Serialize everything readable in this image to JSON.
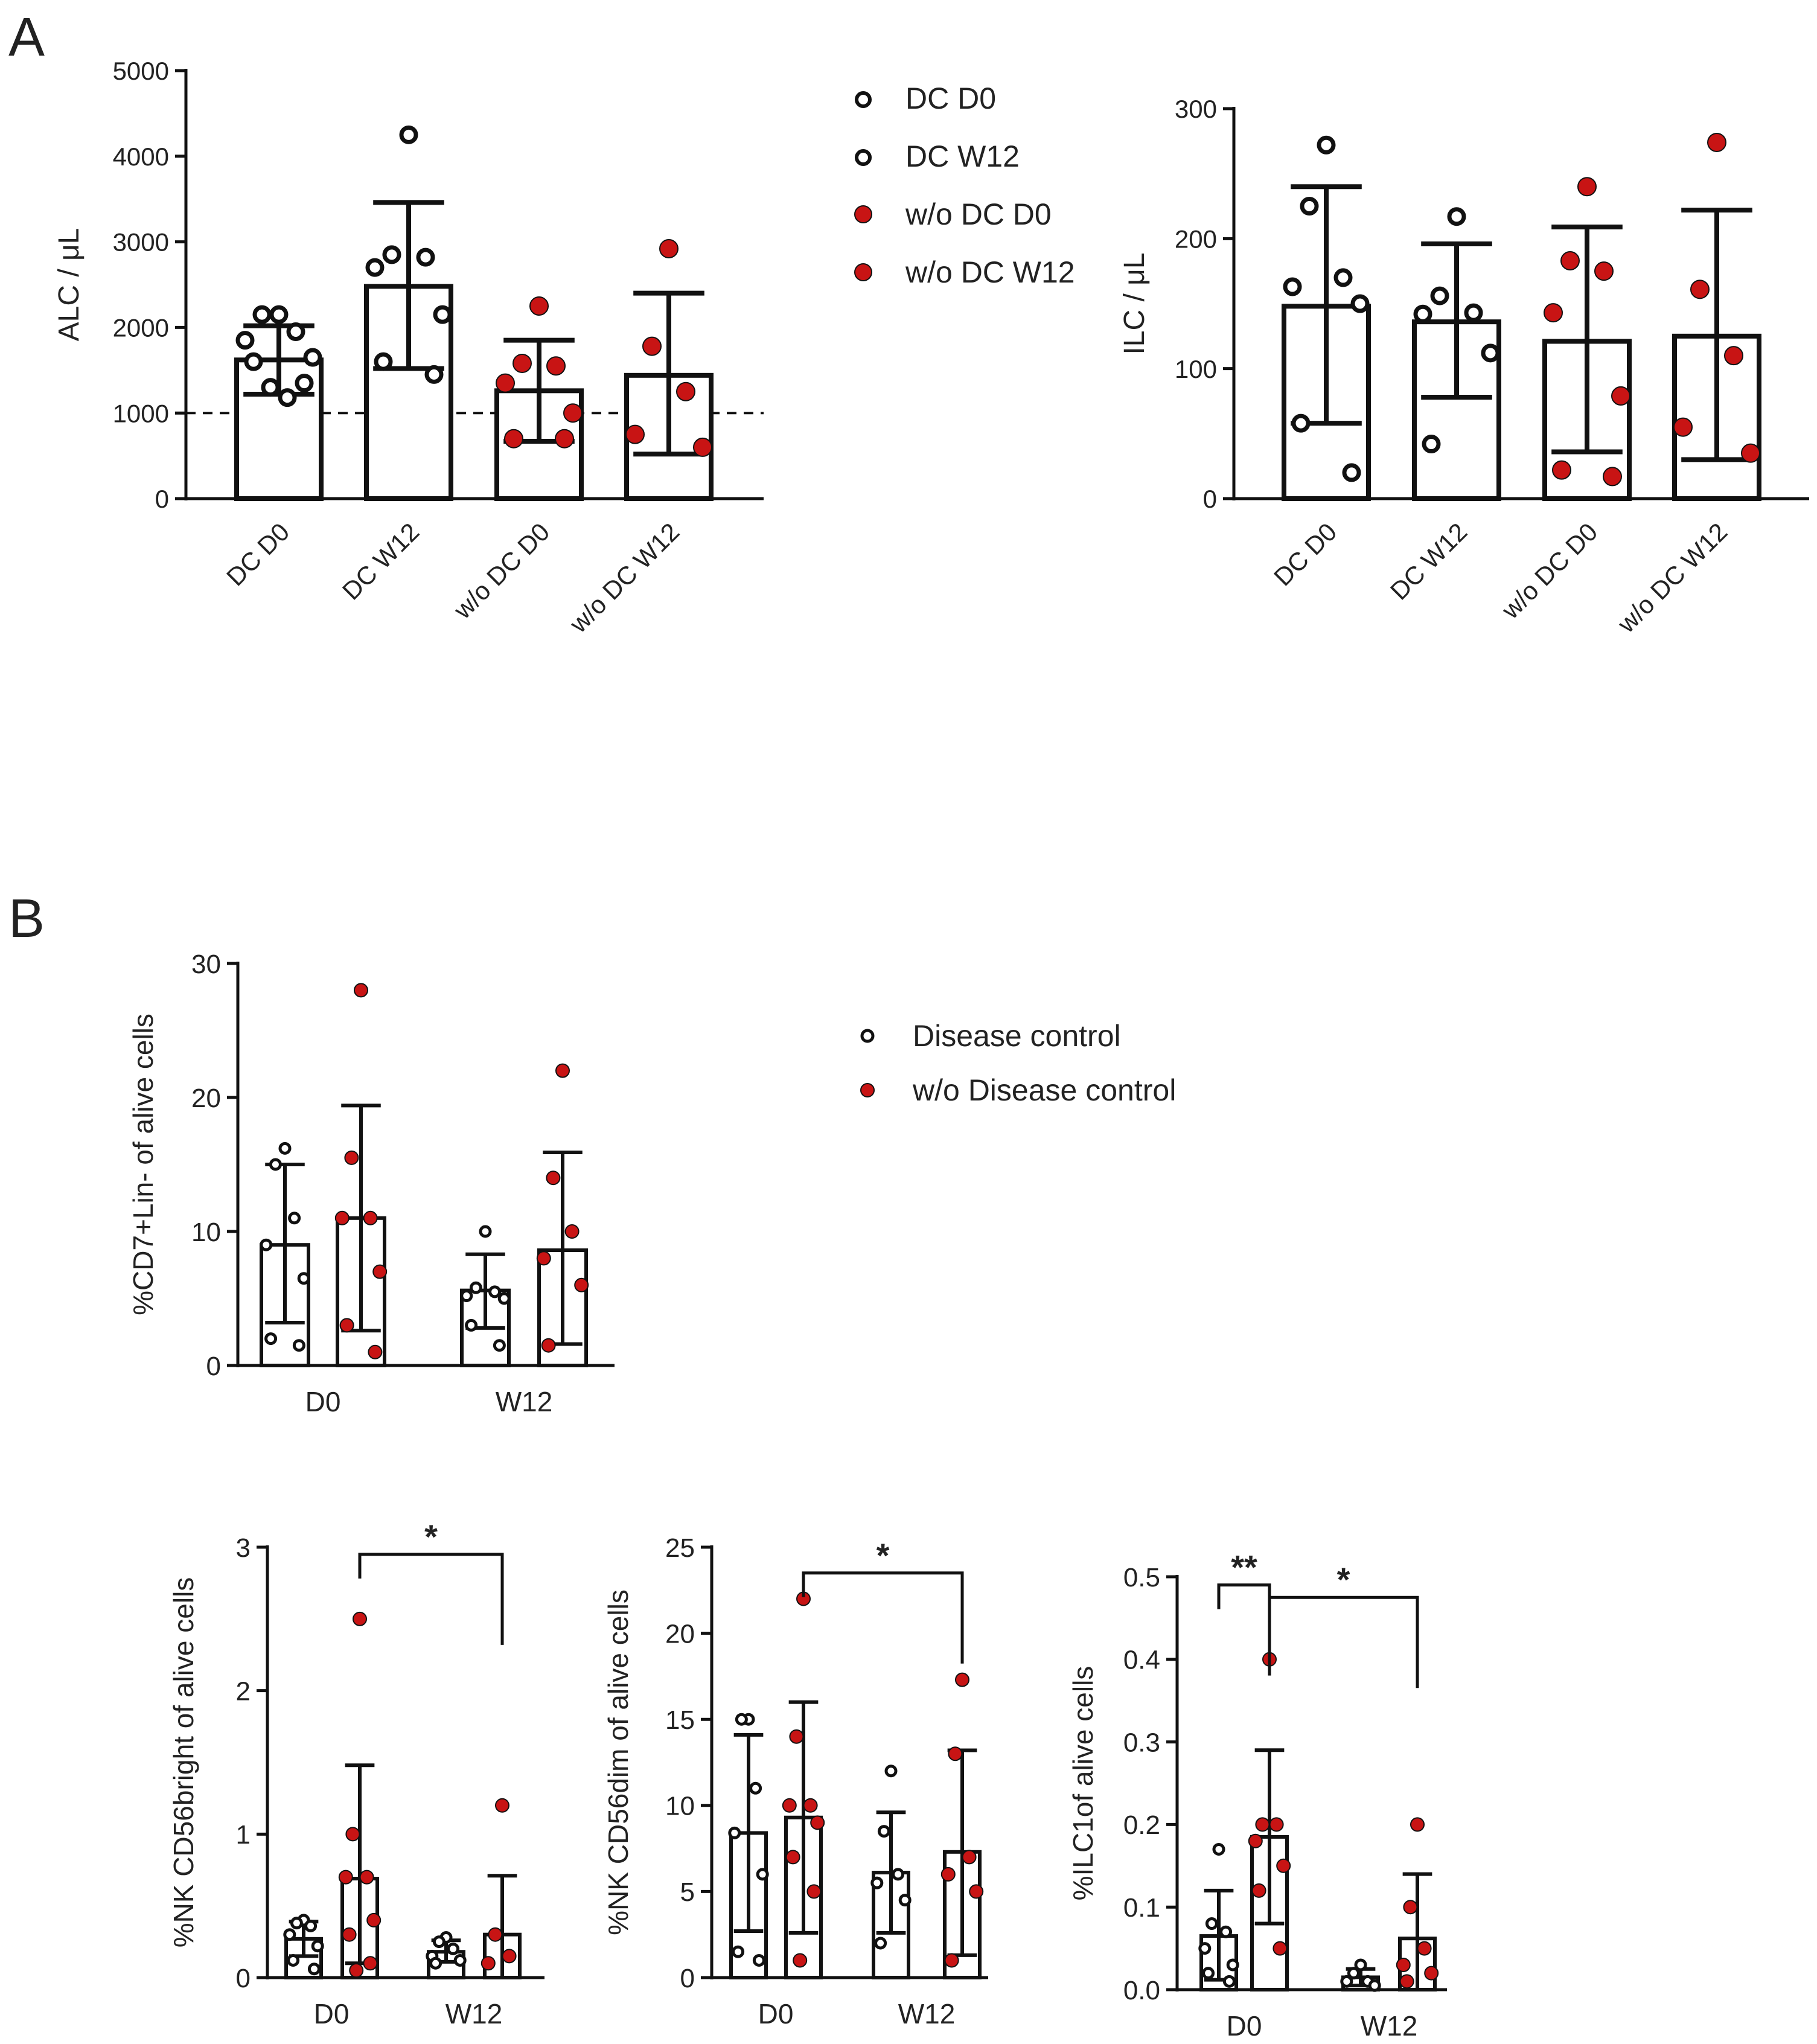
{
  "panel_labels": [
    "A",
    "B"
  ],
  "colors": {
    "open": "#ffffff",
    "filled": "#c81414",
    "ink": "#111111"
  },
  "legend_A": [
    {
      "label": "DC D0",
      "marker": "open"
    },
    {
      "label": "DC W12",
      "marker": "open"
    },
    {
      "label": "w/o DC D0",
      "marker": "filled"
    },
    {
      "label": "w/o DC W12",
      "marker": "filled"
    }
  ],
  "legend_B": [
    {
      "label": "Disease control",
      "marker": "open"
    },
    {
      "label": "w/o Disease control",
      "marker": "filled"
    }
  ],
  "chart_data": [
    {
      "id": "alc",
      "type": "bar",
      "ylabel": "ALC / μL",
      "ylim": [
        0,
        5000
      ],
      "yticks": [
        0,
        1000,
        2000,
        3000,
        4000,
        5000
      ],
      "reference_line": 1000,
      "categories": [
        "DC D0",
        "DC W12",
        "w/o DC D0",
        "w/o DC W12"
      ],
      "bars": [
        {
          "category": "DC D0",
          "marker": "open",
          "mean": 1620,
          "err_low": 1220,
          "err_high": 2020,
          "points": [
            2150,
            2150,
            1950,
            1850,
            1650,
            1600,
            1350,
            1300,
            1180
          ]
        },
        {
          "category": "DC W12",
          "marker": "open",
          "mean": 2480,
          "err_low": 1520,
          "err_high": 3460,
          "points": [
            4250,
            2850,
            2820,
            2700,
            2150,
            1600,
            1450
          ]
        },
        {
          "category": "w/o DC D0",
          "marker": "filled",
          "mean": 1260,
          "err_low": 670,
          "err_high": 1850,
          "points": [
            2250,
            1580,
            1550,
            1350,
            1000,
            700,
            700
          ]
        },
        {
          "category": "w/o DC W12",
          "marker": "filled",
          "mean": 1440,
          "err_low": 520,
          "err_high": 2400,
          "points": [
            2920,
            1780,
            1250,
            750,
            600
          ]
        }
      ]
    },
    {
      "id": "ilc",
      "type": "bar",
      "ylabel": "ILC / μL",
      "ylim": [
        0,
        300
      ],
      "yticks": [
        0,
        100,
        200,
        300
      ],
      "categories": [
        "DC D0",
        "DC W12",
        "w/o DC D0",
        "w/o DC W12"
      ],
      "bars": [
        {
          "category": "DC D0",
          "marker": "open",
          "mean": 148,
          "err_low": 58,
          "err_high": 240,
          "points": [
            272,
            225,
            170,
            163,
            150,
            58,
            20
          ]
        },
        {
          "category": "DC W12",
          "marker": "open",
          "mean": 136,
          "err_low": 78,
          "err_high": 196,
          "points": [
            217,
            156,
            143,
            142,
            112,
            42
          ]
        },
        {
          "category": "w/o DC D0",
          "marker": "filled",
          "mean": 121,
          "err_low": 36,
          "err_high": 209,
          "points": [
            240,
            183,
            175,
            143,
            79,
            22,
            17
          ]
        },
        {
          "category": "w/o DC W12",
          "marker": "filled",
          "mean": 125,
          "err_low": 30,
          "err_high": 222,
          "points": [
            274,
            161,
            110,
            55,
            35
          ]
        }
      ]
    },
    {
      "id": "cd7",
      "type": "bar",
      "ylabel": "%CD7+Lin- of alive cells",
      "ylim": [
        0,
        30
      ],
      "yticks": [
        0,
        10,
        20,
        30
      ],
      "groups": [
        "D0",
        "W12"
      ],
      "bars": [
        {
          "group": "D0",
          "marker": "open",
          "mean": 9.0,
          "err_low": 3.2,
          "err_high": 15.0,
          "points": [
            16.2,
            15.0,
            11.0,
            9.0,
            6.5,
            2.0,
            1.5
          ]
        },
        {
          "group": "D0",
          "marker": "filled",
          "mean": 11.0,
          "err_low": 2.6,
          "err_high": 19.4,
          "points": [
            28.0,
            15.5,
            11.0,
            11.0,
            7.0,
            3.0,
            1.0
          ]
        },
        {
          "group": "W12",
          "marker": "open",
          "mean": 5.6,
          "err_low": 2.8,
          "err_high": 8.3,
          "points": [
            10.0,
            5.8,
            5.5,
            5.2,
            5.0,
            3.0,
            1.5
          ]
        },
        {
          "group": "W12",
          "marker": "filled",
          "mean": 8.6,
          "err_low": 1.6,
          "err_high": 15.9,
          "points": [
            22.0,
            14.0,
            10.0,
            8.0,
            6.0,
            1.5
          ]
        }
      ]
    },
    {
      "id": "bright",
      "type": "bar",
      "ylabel": "%NK CD56bright of alive cells",
      "ylim": [
        0,
        3
      ],
      "yticks": [
        0,
        1,
        2,
        3
      ],
      "groups": [
        "D0",
        "W12"
      ],
      "significance": [
        {
          "from_bar": 1,
          "to_bar": 3,
          "level_value": 2.95,
          "label": "*"
        }
      ],
      "bars": [
        {
          "group": "D0",
          "marker": "open",
          "mean": 0.27,
          "err_low": 0.15,
          "err_high": 0.39,
          "points": [
            0.4,
            0.38,
            0.36,
            0.3,
            0.22,
            0.12,
            0.06
          ]
        },
        {
          "group": "D0",
          "marker": "filled",
          "mean": 0.69,
          "err_low": 0.1,
          "err_high": 1.48,
          "points": [
            2.5,
            1.0,
            0.7,
            0.7,
            0.4,
            0.3,
            0.1,
            0.05
          ]
        },
        {
          "group": "W12",
          "marker": "open",
          "mean": 0.18,
          "err_low": 0.11,
          "err_high": 0.26,
          "points": [
            0.28,
            0.25,
            0.2,
            0.15,
            0.12,
            0.1
          ]
        },
        {
          "group": "W12",
          "marker": "filled",
          "mean": 0.3,
          "err_low": 0.0,
          "err_high": 0.71,
          "points": [
            1.2,
            0.3,
            0.15,
            0.1
          ]
        }
      ]
    },
    {
      "id": "dim",
      "type": "bar",
      "ylabel": "%NK CD56dim of alive cells",
      "ylim": [
        0,
        25
      ],
      "yticks": [
        0,
        5,
        10,
        15,
        20,
        25
      ],
      "groups": [
        "D0",
        "W12"
      ],
      "significance": [
        {
          "from_bar": 1,
          "to_bar": 3,
          "level_value": 23.5,
          "label": "*"
        }
      ],
      "bars": [
        {
          "group": "D0",
          "marker": "open",
          "mean": 8.4,
          "err_low": 2.7,
          "err_high": 14.1,
          "points": [
            15.0,
            15.0,
            11.0,
            8.4,
            6.0,
            1.5,
            1.0
          ]
        },
        {
          "group": "D0",
          "marker": "filled",
          "mean": 9.3,
          "err_low": 2.6,
          "err_high": 16.0,
          "points": [
            22.0,
            14.0,
            10.0,
            10.0,
            9.0,
            7.0,
            5.0,
            1.0
          ]
        },
        {
          "group": "W12",
          "marker": "open",
          "mean": 6.1,
          "err_low": 2.6,
          "err_high": 9.6,
          "points": [
            12.0,
            8.5,
            6.0,
            5.5,
            4.5,
            2.0
          ]
        },
        {
          "group": "W12",
          "marker": "filled",
          "mean": 7.3,
          "err_low": 1.3,
          "err_high": 13.2,
          "points": [
            17.3,
            13.0,
            7.0,
            6.0,
            5.0,
            1.0
          ]
        }
      ]
    },
    {
      "id": "ilc1",
      "type": "bar",
      "ylabel": "%ILC1of alive cells",
      "ylim": [
        0,
        0.5
      ],
      "yticks": [
        0.0,
        0.1,
        0.2,
        0.3,
        0.4,
        0.5
      ],
      "tick_decimals": 1,
      "groups": [
        "D0",
        "W12"
      ],
      "significance": [
        {
          "from_bar": 0,
          "to_bar": 1,
          "level_value": 0.49,
          "label": "**"
        },
        {
          "from_bar": 1,
          "to_bar": 3,
          "level_value": 0.475,
          "label": "*"
        }
      ],
      "bars": [
        {
          "group": "D0",
          "marker": "open",
          "mean": 0.065,
          "err_low": 0.012,
          "err_high": 0.12,
          "points": [
            0.17,
            0.08,
            0.07,
            0.05,
            0.03,
            0.02,
            0.01
          ]
        },
        {
          "group": "D0",
          "marker": "filled",
          "mean": 0.185,
          "err_low": 0.08,
          "err_high": 0.29,
          "points": [
            0.4,
            0.2,
            0.2,
            0.18,
            0.15,
            0.12,
            0.05
          ]
        },
        {
          "group": "W12",
          "marker": "open",
          "mean": 0.015,
          "err_low": 0.005,
          "err_high": 0.025,
          "points": [
            0.03,
            0.02,
            0.01,
            0.01,
            0.005
          ]
        },
        {
          "group": "W12",
          "marker": "filled",
          "mean": 0.062,
          "err_low": 0.0,
          "err_high": 0.14,
          "points": [
            0.2,
            0.1,
            0.05,
            0.03,
            0.02,
            0.01
          ]
        }
      ]
    }
  ]
}
